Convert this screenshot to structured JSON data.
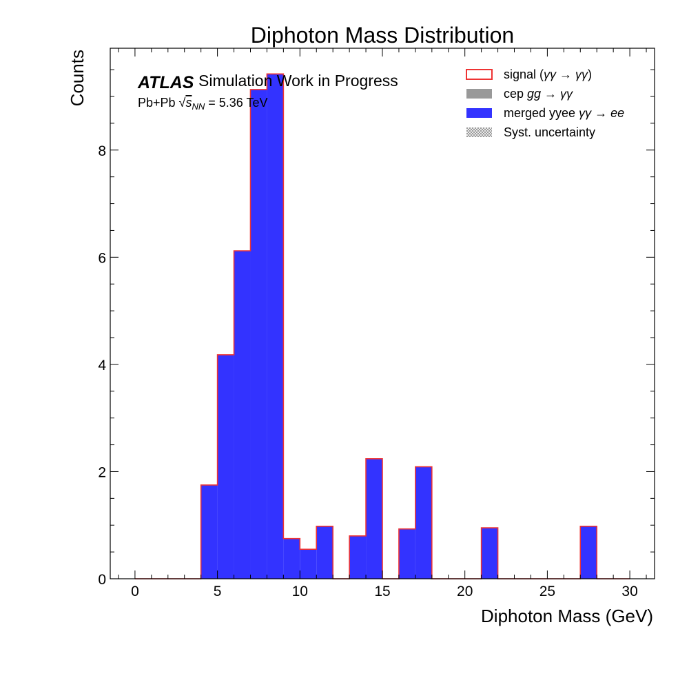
{
  "chart_data": {
    "type": "bar",
    "histogram": true,
    "title": "Diphoton Mass Distribution",
    "xlabel": "Diphoton Mass (GeV)",
    "ylabel": "Counts",
    "xlim": [
      -1.5,
      31.5
    ],
    "ylim": [
      0,
      9.9
    ],
    "xticks": [
      0,
      5,
      10,
      15,
      20,
      25,
      30
    ],
    "xtick_labels": [
      "0",
      "5",
      "10",
      "15",
      "20",
      "25",
      "30"
    ],
    "yticks": [
      0,
      2,
      4,
      6,
      8
    ],
    "ytick_labels": [
      "0",
      "2",
      "4",
      "6",
      "8"
    ],
    "bin_edges": [
      0,
      1,
      2,
      3,
      4,
      5,
      6,
      7,
      8,
      9,
      10,
      11,
      12,
      13,
      14,
      15,
      16,
      17,
      18,
      19,
      20,
      21,
      22,
      23,
      24,
      25,
      26,
      27,
      28,
      29,
      30
    ],
    "series": [
      {
        "name": "merged yyee γγ → ee",
        "values": [
          0,
          0,
          0,
          0,
          1.75,
          4.18,
          6.12,
          9.13,
          9.42,
          0.75,
          0.55,
          0.98,
          0,
          0.8,
          2.24,
          0,
          0.93,
          2.09,
          0,
          0,
          0,
          0.95,
          0,
          0,
          0,
          0,
          0,
          0.98,
          0,
          0
        ]
      },
      {
        "name": "signal (γγ → γγ)",
        "values": [
          0,
          0,
          0,
          0,
          1.75,
          4.18,
          6.12,
          9.13,
          9.42,
          0.75,
          0.55,
          0.98,
          0,
          0.8,
          2.24,
          0,
          0.93,
          2.09,
          0,
          0,
          0,
          0.95,
          0,
          0,
          0,
          0,
          0,
          0.98,
          0,
          0
        ]
      }
    ],
    "legend_position": "top-right",
    "grid": false
  },
  "annotations": {
    "atlas_label": "ATLAS",
    "atlas_sub": "Simulation Work in Progress",
    "collision_prefix": "Pb+Pb ",
    "collision_sqrt_symbol": "√",
    "collision_s": "s",
    "collision_sub": "NN",
    "collision_value": " = 5.36 TeV"
  },
  "legend": [
    {
      "label_prefix": "signal (",
      "label_math": "γγ → γγ",
      "label_suffix": ")",
      "style": "outline",
      "color": "#ee3333"
    },
    {
      "label_prefix": "cep ",
      "label_math": "gg → γγ",
      "label_suffix": "",
      "style": "filled",
      "color": "#999999"
    },
    {
      "label_prefix": "merged yyee ",
      "label_math": "γγ → ee",
      "label_suffix": "",
      "style": "filled",
      "color": "#3333ff"
    },
    {
      "label_prefix": "Syst. uncertainty",
      "label_math": "",
      "label_suffix": "",
      "style": "hatched",
      "color": "#888888"
    }
  ],
  "colors": {
    "fill": "#3333ff",
    "outline": "#ee3333",
    "cep": "#999999",
    "hatch": "#888888"
  }
}
